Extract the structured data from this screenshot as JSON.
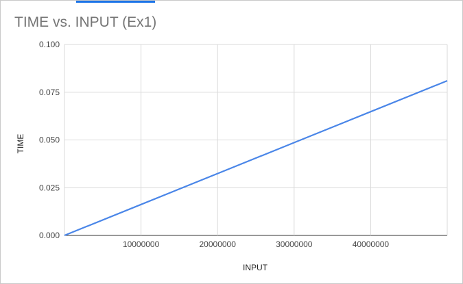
{
  "chart_data": {
    "type": "line",
    "title": "TIME vs. INPUT (Ex1)",
    "xlabel": "INPUT",
    "ylabel": "TIME",
    "xlim": [
      0,
      50000000
    ],
    "ylim": [
      0,
      0.1
    ],
    "x_ticks": [
      "10000000",
      "20000000",
      "30000000",
      "40000000"
    ],
    "y_ticks": [
      "0.000",
      "0.025",
      "0.050",
      "0.075",
      "0.100"
    ],
    "grid": true,
    "legend": "none",
    "series": [
      {
        "color": "#4a86e8",
        "x": [
          0,
          10000000,
          20000000,
          30000000,
          40000000,
          50000000
        ],
        "y": [
          0.0,
          0.0162,
          0.0324,
          0.0486,
          0.0648,
          0.081
        ]
      }
    ]
  }
}
